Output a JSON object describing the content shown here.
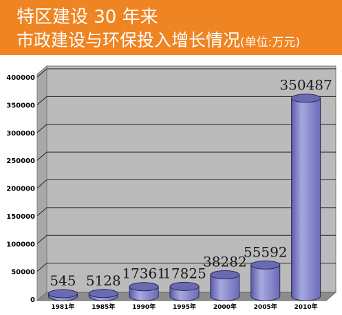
{
  "header": {
    "title_line1": "特区建设 30 年来",
    "title_line2": "市政建设与环保投入增长情况",
    "unit": "(单位:万元)"
  },
  "colors": {
    "header_bg": "#ee8422",
    "header_text": "#ffffff",
    "wall": "#bbbbbb",
    "floor": "#8c8c8c",
    "cylinder_side": "#8080c8",
    "cylinder_top": "#6a6ab4"
  },
  "chart_data": {
    "type": "bar",
    "style": "3d-cylinder",
    "categories": [
      "1981年",
      "1985年",
      "1990年",
      "1995年",
      "2000年",
      "2005年",
      "2010年"
    ],
    "values": [
      545,
      5128,
      17361,
      17825,
      38282,
      55592,
      350487
    ],
    "data_labels": [
      "545",
      "5128",
      "17361",
      "17825",
      "38282",
      "55592",
      "350487"
    ],
    "ylim": [
      0,
      400000
    ],
    "y_ticks": [
      "0",
      "50000",
      "100000",
      "150000",
      "200000",
      "250000",
      "300000",
      "350000",
      "400000"
    ],
    "y_tick_values": [
      0,
      50000,
      100000,
      150000,
      200000,
      250000,
      300000,
      350000,
      400000
    ],
    "grid": true,
    "title": "特区建设 30 年来 市政建设与环保投入增长情况",
    "xlabel": "",
    "ylabel": ""
  }
}
